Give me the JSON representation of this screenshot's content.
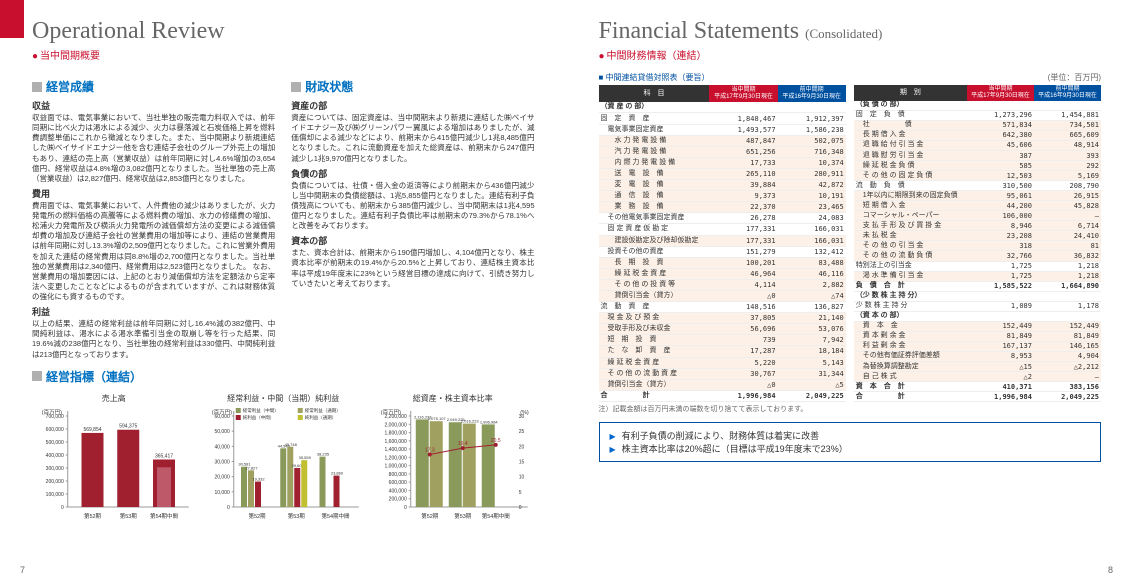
{
  "left": {
    "title": "Operational Review",
    "subtitle": "当中間期概要",
    "pageNum": "7",
    "sections": {
      "seika": {
        "hdr": "経営成績",
        "sub1": "収益",
        "p1": "収益面では、電気事業において、当社単独の販売電力料収入では、前年同期に比べ火力は渇水による減少、火力は暴落減と石炭価格上昇を燃料費調整単価にこれから徴減となりました。また、当中間期より新規連結した㈱ベイサイドエナジー他を含む連結子会社のグループ外売上の増加もあり、連結の売上高（営業収益）は前年同期に対し4.6%増加の3,654億円、経常収益は4.8%増の3,082億円となりました。当社単独の売上高（営業収益）は2,827億円、経常収益は2,853億円となりました。",
        "sub2": "費用",
        "p2": "費用面では、電気事業において、人件費他の減少はありましたが、火力発電所の燃料価格の高騰等による燃料費の増加、水力の修繕費の増加、松浦火力発電所及び横浜火力発電所の減価償却方法の変更による減価償却費の増加及び連結子会社の営業費用の増加等により、連結の営業費用は前年同期に対し13.3%増の2,509億円となりました。これに営業外費用を加えた連結の経常費用は同8.8%増の2,700億円となりました。当社単独の営業費用は2,340億円、経常費用は2,523億円となりました。\nなお、営業費用の増加要因には、上記のとおり減価償却方法を定額法から定率法へ変更したことなどによるものが含まれていますが、これは財務体質の強化にも資するものです。",
        "sub3": "利益",
        "p3": "以上の結果、連結の経常利益は前年同期に対し16.4%減の382億円、中間純利益は、渇水による渇水準備引当金の取崩し等を行った結果、同19.6%減の238億円となり、当社単独の経常利益は330億円、中間純利益は213億円となっております。"
      },
      "zaimu": {
        "hdr": "財政状態",
        "sub1": "資産の部",
        "p1": "資産については、固定資産は、当中間期末より新規に連結した㈱ベイサイドエナジー及び㈱グリーンパワー翼風による増加はありましたが、減価償却による減少などにより、前期末から415億円減少し1兆8,485億円となりました。これに流動資産を加えた総資産は、前期末から247億円減少し1兆9,970億円となりました。",
        "sub2": "負債の部",
        "p2": "負債については、社債・借入金の返済等により前期末から436億円減少し当中間期末の負債総額は、1兆5,855億円となりました。連結有利子負債残高についても、前期末から385億円減少し、当中間期末は1兆4,595億円となりました。連結有利子負債比率は前期末の79.3%から78.1%へと改善をみております。",
        "sub3": "資本の部",
        "p3": "また、資本合計は、前期末から190億円増加し、4,104億円となり、株主資本比率が前期末の19.4%から20.5%と上昇しており、連結株主資本比率は平成19年度末に23%という経営目標の達成に向けて、引続き努力していきたいと考えております。"
      },
      "shihyo": {
        "hdr": "経営指標（連結）"
      }
    },
    "charts": {
      "c1": {
        "title": "売上高",
        "unit": "(百万円)",
        "color": "#a02030",
        "cats": [
          "第52期",
          "第53期",
          "第54期中間"
        ],
        "vals": [
          569854,
          594375,
          365417
        ],
        "sec": [
          null,
          null,
          305417
        ],
        "ymax": 700000,
        "ystep": 100000
      },
      "c2": {
        "title": "経常利益・中間（当期）純利益",
        "unit": "(百万円)",
        "legend": [
          "経常利益（中間）",
          "経常利益（通期）",
          "純利益（中間）",
          "純利益（通期）"
        ],
        "colors": [
          "#8a9a5b",
          "#a0a060",
          "#a02030",
          "#c0c030"
        ],
        "cats": [
          "第52期",
          "第53期",
          "第54期中間"
        ],
        "series": [
          [
            30581,
            44546,
            38235
          ],
          [
            27827,
            45748,
            null
          ],
          [
            19332,
            29605,
            23860
          ],
          [
            null,
            35559,
            null
          ]
        ],
        "ymax": 60000,
        "ystep": 10000,
        "labels_top": [
          "57,093"
        ]
      },
      "c3": {
        "title": "総資産・株主資本比率",
        "unit": "(百万円)",
        "cats": [
          "第52期",
          "第53期",
          "第54期中間"
        ],
        "bars": [
          [
            2116233,
            2049225,
            1996984
          ],
          [
            2075107,
            2016223,
            null
          ]
        ],
        "bar_colors": [
          "#8a9a5b",
          "#a0a060"
        ],
        "line": [
          17.3,
          19.4,
          20.5
        ],
        "line_mid": [
          18.3,
          18.7,
          null
        ],
        "ymax": 2200000,
        "ystep": 200000,
        "line_max": 30,
        "line_color": "#a02030"
      }
    }
  },
  "right": {
    "title": "Financial Statements",
    "title_suffix": "(Consolidated)",
    "subtitle": "中間財務情報（連結）",
    "pageNum": "8",
    "bs_caption": "中間連結貸借対照表（要旨）",
    "unit": "(単位：百万円)",
    "headers": [
      "科　目",
      "当中間期 平成17年9月30日現在",
      "前中間期 平成16年9月30日現在"
    ],
    "headers2": [
      "期　別",
      "当中間期 平成17年9月30日現在",
      "前中間期 平成16年9月30日現在"
    ],
    "assets": [
      {
        "s": "h",
        "l": "（資 産 の 部）"
      },
      {
        "l": "固　定　資　産",
        "a": "1,848,467",
        "b": "1,912,397"
      },
      {
        "l": "電気事業固定資産",
        "a": "1,493,577",
        "b": "1,586,238",
        "i": 1
      },
      {
        "l": "水 力 発 電 設 備",
        "a": "487,847",
        "b": "502,075",
        "i": 2,
        "s": "sh"
      },
      {
        "l": "汽 力 発 電 設 備",
        "a": "651,256",
        "b": "716,348",
        "i": 2,
        "s": "sh"
      },
      {
        "l": "内 燃 力 発 電 設 備",
        "a": "17,733",
        "b": "10,374",
        "i": 2,
        "s": "sh"
      },
      {
        "l": "送　電　設　備",
        "a": "265,110",
        "b": "280,911",
        "i": 2,
        "s": "sh"
      },
      {
        "l": "変　電　設　備",
        "a": "39,884",
        "b": "42,872",
        "i": 2,
        "s": "sh"
      },
      {
        "l": "通　信　設　備",
        "a": "9,373",
        "b": "10,191",
        "i": 2,
        "s": "sh"
      },
      {
        "l": "業　務　設　備",
        "a": "22,370",
        "b": "23,465",
        "i": 2,
        "s": "sh"
      },
      {
        "l": "その他電気事業固定資産",
        "a": "26,278",
        "b": "24,083",
        "i": 1
      },
      {
        "l": "固 定 資 産 仮 勘 定",
        "a": "177,331",
        "b": "166,031",
        "i": 1
      },
      {
        "l": "建設仮勘定及び除却仮勘定",
        "a": "177,331",
        "b": "166,031",
        "i": 2,
        "s": "sh"
      },
      {
        "l": "投資その他の資産",
        "a": "151,279",
        "b": "132,412",
        "i": 1
      },
      {
        "l": "長　期　投　資",
        "a": "100,201",
        "b": "83,488",
        "i": 2,
        "s": "sh"
      },
      {
        "l": "繰 延 税 金 資 産",
        "a": "46,964",
        "b": "46,116",
        "i": 2,
        "s": "sh"
      },
      {
        "l": "そ の 他 の 投 資 等",
        "a": "4,114",
        "b": "2,882",
        "i": 2,
        "s": "sh"
      },
      {
        "l": "貸倒引当金（貸方）",
        "a": "△0",
        "b": "△74",
        "i": 2,
        "s": "sh"
      },
      {
        "l": "流　動　資　産",
        "a": "148,516",
        "b": "136,827"
      },
      {
        "l": "現 金 及 び 預 金",
        "a": "37,805",
        "b": "21,140",
        "i": 1,
        "s": "sh"
      },
      {
        "l": "受取手形及び未収金",
        "a": "56,696",
        "b": "53,076",
        "i": 1,
        "s": "sh"
      },
      {
        "l": "短　期　投　資",
        "a": "739",
        "b": "7,942",
        "i": 1,
        "s": "sh"
      },
      {
        "l": "た　な　卸　資　産",
        "a": "17,287",
        "b": "18,184",
        "i": 1,
        "s": "sh"
      },
      {
        "l": "繰 延 税 金 資 産",
        "a": "5,220",
        "b": "5,143",
        "i": 1,
        "s": "sh"
      },
      {
        "l": "そ の 他 の 流 動 資 産",
        "a": "30,767",
        "b": "31,344",
        "i": 1,
        "s": "sh"
      },
      {
        "l": "貸倒引当金（貸方）",
        "a": "△0",
        "b": "△5",
        "i": 1,
        "s": "sh"
      },
      {
        "s": "t",
        "l": "合　　　　　計",
        "a": "1,996,984",
        "b": "2,049,225"
      }
    ],
    "liab": [
      {
        "s": "h",
        "l": "（負 債 の 部）"
      },
      {
        "l": "固　定　負　債",
        "a": "1,273,296",
        "b": "1,454,881"
      },
      {
        "l": "社　　　　　債",
        "a": "571,834",
        "b": "734,501",
        "i": 1,
        "s": "sh"
      },
      {
        "l": "長 期 借 入 金",
        "a": "642,380",
        "b": "665,609",
        "i": 1,
        "s": "sh"
      },
      {
        "l": "退 職 給 付 引 当 金",
        "a": "45,606",
        "b": "48,914",
        "i": 1,
        "s": "sh"
      },
      {
        "l": "退 職 慰 労 引 当 金",
        "a": "387",
        "b": "393",
        "i": 1,
        "s": "sh"
      },
      {
        "l": "繰 延 税 金 負 債",
        "a": "585",
        "b": "292",
        "i": 1,
        "s": "sh"
      },
      {
        "l": "そ の 他 の 固 定 負 債",
        "a": "12,503",
        "b": "5,169",
        "i": 1,
        "s": "sh"
      },
      {
        "l": "流　動　負　債",
        "a": "310,500",
        "b": "208,790"
      },
      {
        "l": "1年以内に期限到来の固定負債",
        "a": "95,061",
        "b": "26,915",
        "i": 1,
        "s": "sh"
      },
      {
        "l": "短 期 借 入 金",
        "a": "44,200",
        "b": "45,828",
        "i": 1,
        "s": "sh"
      },
      {
        "l": "コマーシャル・ペーパー",
        "a": "106,000",
        "b": "—",
        "i": 1,
        "s": "sh"
      },
      {
        "l": "支 払 手 形 及 び 買 掛 金",
        "a": "8,946",
        "b": "6,714",
        "i": 1,
        "s": "sh"
      },
      {
        "l": "未 払 税 金",
        "a": "23,208",
        "b": "24,410",
        "i": 1,
        "s": "sh"
      },
      {
        "l": "そ の 他 の 引 当 金",
        "a": "318",
        "b": "81",
        "i": 1,
        "s": "sh"
      },
      {
        "l": "そ の 他 の 流 動 負 債",
        "a": "32,766",
        "b": "36,832",
        "i": 1,
        "s": "sh"
      },
      {
        "l": "特別法上の引当金",
        "a": "1,725",
        "b": "1,218"
      },
      {
        "l": "渇 水 準 備 引 当 金",
        "a": "1,725",
        "b": "1,218",
        "i": 1,
        "s": "sh"
      },
      {
        "s": "t",
        "l": "負　債　合　計",
        "a": "1,585,522",
        "b": "1,664,890"
      },
      {
        "s": "h",
        "l": "（少 数 株 主 持 分）"
      },
      {
        "l": "少 数 株 主 持 分",
        "a": "1,089",
        "b": "1,178"
      },
      {
        "s": "h",
        "l": "（資 本 の 部）"
      },
      {
        "l": "資　本　金",
        "a": "152,449",
        "b": "152,449",
        "i": 1,
        "s": "sh"
      },
      {
        "l": "資 本 剰 余 金",
        "a": "81,849",
        "b": "81,849",
        "i": 1,
        "s": "sh"
      },
      {
        "l": "利 益 剰 余 金",
        "a": "167,137",
        "b": "146,165",
        "i": 1,
        "s": "sh"
      },
      {
        "l": "その他有価証券評価差額",
        "a": "8,953",
        "b": "4,904",
        "i": 1,
        "s": "sh"
      },
      {
        "l": "為替換算調整勘定",
        "a": "△15",
        "b": "△2,212",
        "i": 1,
        "s": "sh"
      },
      {
        "l": "自 己 株 式",
        "a": "△2",
        "b": "—",
        "i": 1,
        "s": "sh"
      },
      {
        "s": "t",
        "l": "資　本　合　計",
        "a": "410,371",
        "b": "383,156"
      },
      {
        "s": "t",
        "l": "合　　　　　計",
        "a": "1,996,984",
        "b": "2,049,225"
      }
    ],
    "note": "注）記載金額は百万円未満の端数を切り捨てて表示しております。",
    "callout": [
      "有利子負債の削減により、財務体質は着実に改善",
      "株主資本比率は20%超に（目標は平成19年度末で23%）"
    ]
  }
}
